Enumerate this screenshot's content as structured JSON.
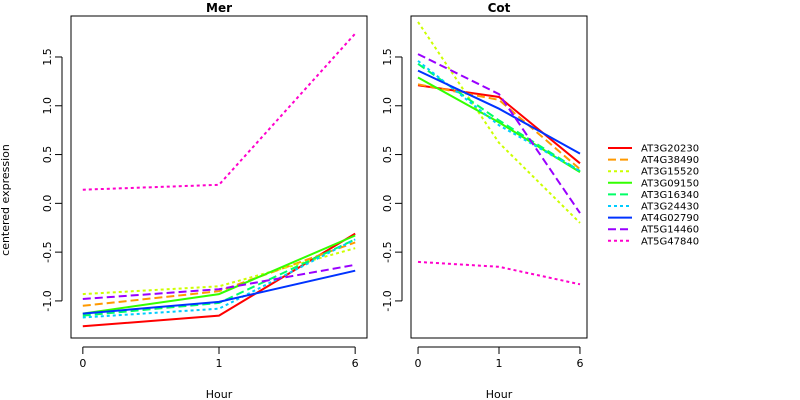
{
  "chart_data": {
    "type": "line",
    "ylabel": "centered expression",
    "xlabel": "Hour",
    "x_ticks": [
      "0",
      "1",
      "6"
    ],
    "y_ticks": [
      "-1.0",
      "-0.5",
      "0.0",
      "0.5",
      "1.0",
      "1.5"
    ],
    "ylim": [
      -1.38,
      1.92
    ],
    "series_styles": [
      {
        "name": "AT3G20230",
        "color": "#ff0000",
        "dash": "solid"
      },
      {
        "name": "AT4G38490",
        "color": "#ff9900",
        "dash": "dashed"
      },
      {
        "name": "AT3G15520",
        "color": "#ccff00",
        "dash": "dotted"
      },
      {
        "name": "AT3G09150",
        "color": "#33ff00",
        "dash": "solid"
      },
      {
        "name": "AT3G16340",
        "color": "#00ff66",
        "dash": "dashed"
      },
      {
        "name": "AT3G24430",
        "color": "#00ccff",
        "dash": "dotted"
      },
      {
        "name": "AT4G02790",
        "color": "#0033ff",
        "dash": "solid"
      },
      {
        "name": "AT5G14460",
        "color": "#9900ff",
        "dash": "dashed"
      },
      {
        "name": "AT5G47840",
        "color": "#ff00cc",
        "dash": "dotted"
      }
    ],
    "panels": [
      {
        "title": "Mer",
        "series": [
          {
            "name": "AT3G20230",
            "values": [
              -1.26,
              -1.15,
              -0.31
            ]
          },
          {
            "name": "AT4G38490",
            "values": [
              -1.05,
              -0.9,
              -0.4
            ]
          },
          {
            "name": "AT3G15520",
            "values": [
              -0.93,
              -0.85,
              -0.46
            ]
          },
          {
            "name": "AT3G09150",
            "values": [
              -1.13,
              -0.93,
              -0.33
            ]
          },
          {
            "name": "AT3G16340",
            "values": [
              -1.15,
              -1.02,
              -0.37
            ]
          },
          {
            "name": "AT3G24430",
            "values": [
              -1.17,
              -1.08,
              -0.37
            ]
          },
          {
            "name": "AT4G02790",
            "values": [
              -1.13,
              -1.01,
              -0.69
            ]
          },
          {
            "name": "AT5G14460",
            "values": [
              -0.98,
              -0.88,
              -0.63
            ]
          },
          {
            "name": "AT5G47840",
            "values": [
              0.14,
              0.19,
              1.74
            ]
          }
        ]
      },
      {
        "title": "Cot",
        "series": [
          {
            "name": "AT3G20230",
            "values": [
              1.21,
              1.09,
              0.41
            ]
          },
          {
            "name": "AT4G38490",
            "values": [
              1.22,
              1.06,
              0.35
            ]
          },
          {
            "name": "AT3G15520",
            "values": [
              1.86,
              0.62,
              -0.2
            ]
          },
          {
            "name": "AT3G09150",
            "values": [
              1.29,
              0.83,
              0.32
            ]
          },
          {
            "name": "AT3G16340",
            "values": [
              1.43,
              0.85,
              0.33
            ]
          },
          {
            "name": "AT3G24430",
            "values": [
              1.46,
              0.8,
              0.33
            ]
          },
          {
            "name": "AT4G02790",
            "values": [
              1.36,
              0.97,
              0.51
            ]
          },
          {
            "name": "AT5G14460",
            "values": [
              1.53,
              1.12,
              -0.1
            ]
          },
          {
            "name": "AT5G47840",
            "values": [
              -0.6,
              -0.65,
              -0.83
            ]
          }
        ]
      }
    ]
  }
}
